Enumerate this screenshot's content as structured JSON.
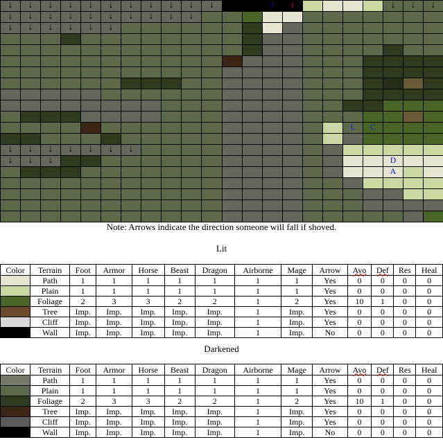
{
  "map": {
    "colors": {
      "W": "#000000",
      "G": "#65675a",
      "P": "#5d6a4a",
      "F": "#2e3a1e",
      "T": "#3b2515",
      "L": "#c8d8a0",
      "S": "#e6e5d0",
      "O": "#4a6425",
      "B": "#6a5a33",
      "H": "#252e17"
    },
    "rows": [
      "GGGGGGGGGGGWWWWLSSLPPP",
      "GGGGGGGGGGPPOSSPPPPPPP",
      "GGGGGGPPPPPPFSGPPPPPPP",
      "PPPFPPPPPPPPFGGPPPPPPP",
      "PPPPPPPPPPPPFGGPPPPFPP",
      "PPPPPPPPPPPTGGGPPPFFFF",
      "PPPPPPPPPPPGGGGPPPFFFF",
      "PPPPPPFFFPPGGGGPPPFHBF",
      "GGGGGPPPPPPGGGGPPPFFFF",
      "GGGGGGGGPPPGGGGPPFFOOO",
      "PFFFGGGGPPPGGGGPPPOOBO",
      "PPPPTPPPPPPGGGGPLPOOOO",
      "FFPPPFPPPPPGGGGPLGOOOO",
      "GGGGGGGPPPPGGGGPGLLLLL",
      "GGGFFPPPPPPGGGGPGSSSSS",
      "PFFFPPPPPPPGGGGPGSSSLS",
      "PPPPPPPPPPPGGGGPPGLLLL",
      "PPPPPPPPPPPGGGGPPPGGLL",
      "PPPPPPPPPPPGGGGPPPGGGG",
      "PPPPPPPPPPPGGGGPPPPPGO"
    ],
    "arrow_glyph": "↓",
    "arrows": [
      [
        0,
        0
      ],
      [
        0,
        1
      ],
      [
        0,
        2
      ],
      [
        0,
        3
      ],
      [
        0,
        4
      ],
      [
        0,
        5
      ],
      [
        0,
        6
      ],
      [
        0,
        7
      ],
      [
        0,
        8
      ],
      [
        0,
        9
      ],
      [
        0,
        10
      ],
      [
        1,
        0
      ],
      [
        1,
        1
      ],
      [
        1,
        2
      ],
      [
        1,
        3
      ],
      [
        1,
        4
      ],
      [
        1,
        5
      ],
      [
        1,
        6
      ],
      [
        1,
        7
      ],
      [
        1,
        8
      ],
      [
        1,
        9
      ],
      [
        2,
        0
      ],
      [
        2,
        1
      ],
      [
        2,
        2
      ],
      [
        2,
        3
      ],
      [
        2,
        4
      ],
      [
        2,
        5
      ],
      [
        0,
        19
      ],
      [
        0,
        20
      ],
      [
        0,
        21
      ],
      [
        13,
        0
      ],
      [
        13,
        1
      ],
      [
        13,
        2
      ],
      [
        13,
        3
      ],
      [
        13,
        4
      ],
      [
        13,
        5
      ],
      [
        13,
        6
      ],
      [
        14,
        0
      ],
      [
        14,
        1
      ],
      [
        14,
        2
      ]
    ],
    "markers": [
      {
        "r": 0,
        "c": 13,
        "text": "J",
        "color": "blue"
      },
      {
        "r": 0,
        "c": 14,
        "text": "1",
        "color": "red"
      },
      {
        "r": 11,
        "c": 17,
        "text": "L",
        "color": "blue"
      },
      {
        "r": 11,
        "c": 18,
        "text": "C",
        "color": "blue"
      },
      {
        "r": 14,
        "c": 19,
        "text": "D",
        "color": "blue"
      },
      {
        "r": 15,
        "c": 19,
        "text": "A",
        "color": "blue"
      }
    ]
  },
  "note": "Note: Arrows indicate the direction someone will fall if shoved.",
  "tables": [
    {
      "title": "Lit",
      "headers": [
        "Color",
        "Terrain",
        "Foot",
        "Armor",
        "Horse",
        "Beast",
        "Dragon",
        "Airborne",
        "Mage",
        "Arrow",
        "Avo",
        "Def",
        "Res",
        "Heal"
      ],
      "rows": [
        {
          "color": "#e6e5d0",
          "cells": [
            "Path",
            "1",
            "1",
            "1",
            "1",
            "1",
            "1",
            "1",
            "Yes",
            "0",
            "0",
            "0",
            "0"
          ]
        },
        {
          "color": "#c8d8a0",
          "cells": [
            "Plain",
            "1",
            "1",
            "1",
            "1",
            "1",
            "1",
            "1",
            "Yes",
            "0",
            "0",
            "0",
            "0"
          ]
        },
        {
          "color": "#4a6425",
          "cells": [
            "Foliage",
            "2",
            "3",
            "3",
            "2",
            "2",
            "1",
            "2",
            "Yes",
            "10",
            "1",
            "0",
            "0"
          ]
        },
        {
          "color": "#6a4a2a",
          "cells": [
            "Tree",
            "Imp.",
            "Imp.",
            "Imp.",
            "Imp.",
            "Imp.",
            "1",
            "Imp.",
            "Yes",
            "0",
            "0",
            "0",
            "0"
          ]
        },
        {
          "color": "#d9d9d9",
          "cells": [
            "Cliff",
            "Imp.",
            "Imp.",
            "Imp.",
            "Imp.",
            "Imp.",
            "1",
            "Imp.",
            "Yes",
            "0",
            "0",
            "0",
            "0"
          ]
        },
        {
          "color": "#000000",
          "cells": [
            "Wall",
            "Imp.",
            "Imp.",
            "Imp.",
            "Imp.",
            "Imp.",
            "1",
            "Imp.",
            "No",
            "0",
            "0",
            "0",
            "0"
          ]
        }
      ]
    },
    {
      "title": "Darkened",
      "headers": [
        "Color",
        "Terrain",
        "Foot",
        "Armor",
        "Horse",
        "Beast",
        "Dragon",
        "Airborne",
        "Mage",
        "Arrow",
        "Avo",
        "Def",
        "Res",
        "Heal"
      ],
      "rows": [
        {
          "color": "#767868",
          "cells": [
            "Path",
            "1",
            "1",
            "1",
            "1",
            "1",
            "1",
            "1",
            "Yes",
            "0",
            "0",
            "0",
            "0"
          ]
        },
        {
          "color": "#5d6a4a",
          "cells": [
            "Plain",
            "1",
            "1",
            "1",
            "1",
            "1",
            "1",
            "1",
            "Yes",
            "0",
            "0",
            "0",
            "0"
          ]
        },
        {
          "color": "#2e3a1e",
          "cells": [
            "Foliage",
            "2",
            "3",
            "3",
            "2",
            "2",
            "1",
            "2",
            "Yes",
            "10",
            "1",
            "0",
            "0"
          ]
        },
        {
          "color": "#3b2515",
          "cells": [
            "Tree",
            "Imp.",
            "Imp.",
            "Imp.",
            "Imp.",
            "Imp.",
            "1",
            "Imp.",
            "Yes",
            "0",
            "0",
            "0",
            "0"
          ]
        },
        {
          "color": "#5a5a5a",
          "cells": [
            "Cliff",
            "Imp.",
            "Imp.",
            "Imp.",
            "Imp.",
            "Imp.",
            "1",
            "Imp.",
            "Yes",
            "0",
            "0",
            "0",
            "0"
          ]
        },
        {
          "color": "#000000",
          "cells": [
            "Wall",
            "Imp.",
            "Imp.",
            "Imp.",
            "Imp.",
            "Imp.",
            "1",
            "Imp.",
            "No",
            "0",
            "0",
            "0",
            "0"
          ]
        }
      ]
    }
  ]
}
